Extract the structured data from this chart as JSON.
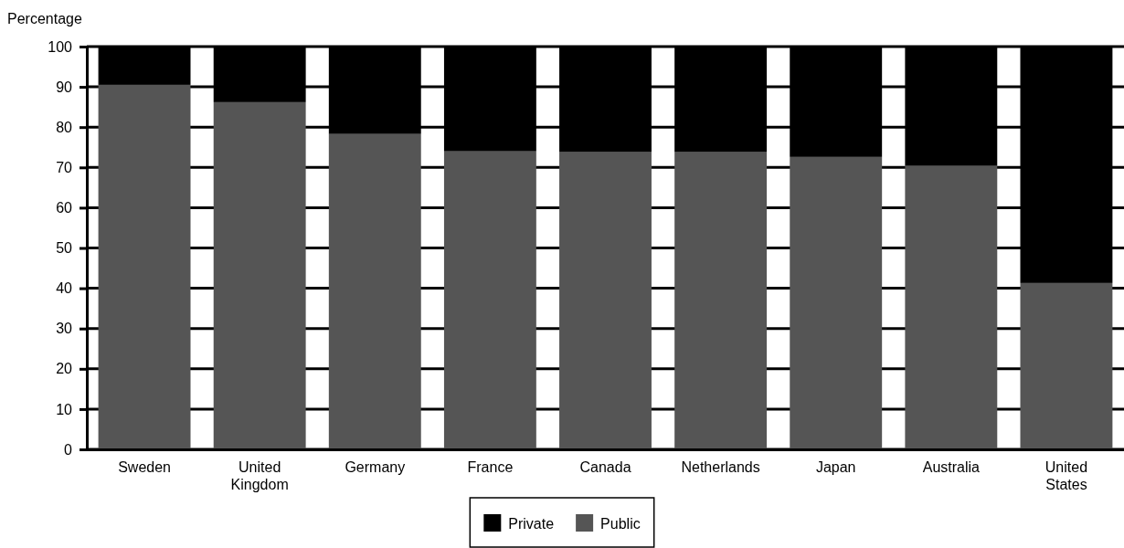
{
  "chart_data": {
    "type": "bar",
    "stacked": true,
    "ylabel": "Percentage",
    "categories": [
      "Sweden",
      "United Kingdom",
      "Germany",
      "France",
      "Canada",
      "Netherlands",
      "Japan",
      "Australia",
      "United States"
    ],
    "series": [
      {
        "name": "Public",
        "color": "#555555",
        "values": [
          90.5,
          86.2,
          78.3,
          74.0,
          73.8,
          73.8,
          72.6,
          70.4,
          41.3
        ]
      },
      {
        "name": "Private",
        "color": "#000000",
        "values": [
          9.5,
          13.8,
          21.7,
          26.0,
          26.2,
          26.2,
          27.4,
          29.6,
          58.7
        ]
      }
    ],
    "ylim": [
      0,
      100
    ],
    "yticks": [
      0,
      10,
      20,
      30,
      40,
      50,
      60,
      70,
      80,
      90,
      100
    ],
    "grid": "y",
    "legend": "bottom"
  }
}
